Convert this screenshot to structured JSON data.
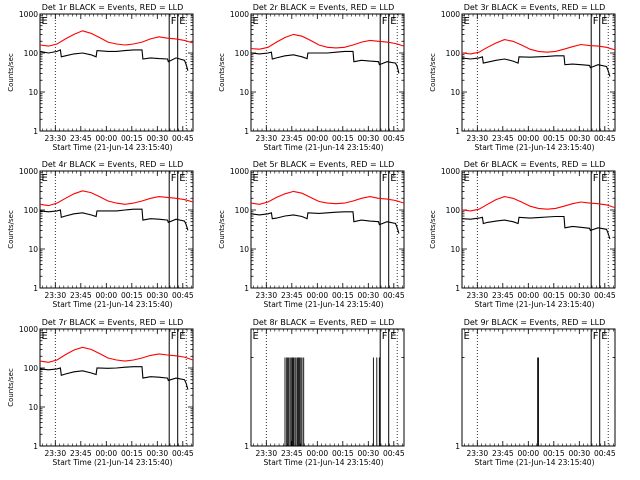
{
  "chart_data": [
    {
      "type": "line",
      "title": "Det 1r  BLACK = Events, RED = LLD",
      "xlabel": "Start Time (21-Jun-14 23:15:40)",
      "ylabel": "Counts/sec",
      "yscale": "log",
      "ylim": [
        1,
        1000
      ],
      "x_ticks": [
        "23:30",
        "23:45",
        "00:00",
        "00:15",
        "00:30",
        "00:45"
      ],
      "y_ticks": [
        "1",
        "10",
        "100",
        "1000"
      ],
      "markers": [
        {
          "label": "E",
          "x_min": 0
        },
        {
          "label": "F",
          "x_min": 76
        },
        {
          "label": "E",
          "x_min": 81
        }
      ],
      "dotted_x_min": [
        9,
        86
      ],
      "series": [
        {
          "name": "LLD",
          "color": "#ff0000",
          "x_min": [
            0,
            5,
            10,
            15,
            20,
            25,
            30,
            35,
            40,
            45,
            50,
            55,
            60,
            65,
            70,
            75,
            80,
            85,
            90
          ],
          "values": [
            160,
            150,
            170,
            230,
            300,
            370,
            320,
            250,
            190,
            170,
            160,
            170,
            190,
            230,
            260,
            240,
            230,
            210,
            180
          ]
        },
        {
          "name": "Events",
          "color": "#000000",
          "x_min": [
            0,
            5,
            10,
            12,
            12.5,
            15,
            20,
            25,
            30,
            33,
            33.5,
            40,
            45,
            50,
            55,
            60,
            60.5,
            65,
            70,
            75,
            75.5,
            80,
            85,
            86,
            87
          ],
          "values": [
            110,
            100,
            110,
            120,
            80,
            85,
            95,
            100,
            90,
            80,
            115,
            110,
            110,
            115,
            120,
            120,
            70,
            75,
            72,
            70,
            60,
            75,
            65,
            50,
            35
          ]
        }
      ]
    },
    {
      "type": "line",
      "title": "Det 2r  BLACK = Events, RED = LLD",
      "xlabel": "Start Time (21-Jun-14 23:15:40)",
      "ylabel": "Counts/sec",
      "yscale": "log",
      "ylim": [
        1,
        1000
      ],
      "x_ticks": [
        "23:30",
        "23:45",
        "00:00",
        "00:15",
        "00:30",
        "00:45"
      ],
      "y_ticks": [
        "1",
        "10",
        "100",
        "1000"
      ],
      "markers": [
        {
          "label": "E",
          "x_min": 0
        },
        {
          "label": "F",
          "x_min": 76
        },
        {
          "label": "E",
          "x_min": 81
        }
      ],
      "dotted_x_min": [
        9,
        86
      ],
      "series": [
        {
          "name": "LLD",
          "color": "#ff0000",
          "x_min": [
            0,
            5,
            10,
            15,
            20,
            25,
            30,
            35,
            40,
            45,
            50,
            55,
            60,
            65,
            70,
            75,
            80,
            85,
            90
          ],
          "values": [
            130,
            125,
            140,
            190,
            250,
            300,
            270,
            210,
            160,
            140,
            135,
            140,
            160,
            190,
            210,
            200,
            190,
            175,
            150
          ]
        },
        {
          "name": "Events",
          "color": "#000000",
          "x_min": [
            0,
            5,
            10,
            12,
            12.5,
            15,
            20,
            25,
            30,
            33,
            33.5,
            40,
            45,
            50,
            55,
            60,
            60.5,
            65,
            70,
            75,
            75.5,
            80,
            85,
            86,
            87
          ],
          "values": [
            100,
            95,
            100,
            105,
            70,
            75,
            85,
            90,
            80,
            72,
            100,
            100,
            100,
            105,
            110,
            110,
            60,
            65,
            62,
            60,
            50,
            60,
            55,
            45,
            30
          ]
        }
      ]
    },
    {
      "type": "line",
      "title": "Det 3r  BLACK = Events, RED = LLD",
      "xlabel": "Start Time (21-Jun-14 23:15:40)",
      "ylabel": "Counts/sec",
      "yscale": "log",
      "ylim": [
        1,
        1000
      ],
      "x_ticks": [
        "23:30",
        "23:45",
        "00:00",
        "00:15",
        "00:30",
        "00:45"
      ],
      "y_ticks": [
        "1",
        "10",
        "100",
        "1000"
      ],
      "markers": [
        {
          "label": "E",
          "x_min": 0
        },
        {
          "label": "F",
          "x_min": 76
        },
        {
          "label": "E",
          "x_min": 81
        }
      ],
      "dotted_x_min": [
        9,
        86
      ],
      "series": [
        {
          "name": "LLD",
          "color": "#ff0000",
          "x_min": [
            0,
            5,
            10,
            15,
            20,
            25,
            30,
            35,
            40,
            45,
            50,
            55,
            60,
            65,
            70,
            75,
            80,
            85,
            90
          ],
          "values": [
            100,
            95,
            105,
            140,
            180,
            220,
            200,
            160,
            125,
            110,
            105,
            110,
            125,
            145,
            165,
            155,
            150,
            140,
            120
          ]
        },
        {
          "name": "Events",
          "color": "#000000",
          "x_min": [
            0,
            5,
            10,
            12,
            12.5,
            15,
            20,
            25,
            30,
            33,
            33.5,
            40,
            45,
            50,
            55,
            60,
            60.5,
            65,
            70,
            75,
            75.5,
            80,
            85,
            86,
            87
          ],
          "values": [
            75,
            70,
            75,
            80,
            55,
            58,
            65,
            70,
            62,
            55,
            80,
            78,
            80,
            82,
            85,
            85,
            50,
            52,
            50,
            48,
            42,
            50,
            45,
            35,
            25
          ]
        }
      ]
    },
    {
      "type": "line",
      "title": "Det 4r  BLACK = Events, RED = LLD",
      "xlabel": "Start Time (21-Jun-14 23:15:40)",
      "ylabel": "Counts/sec",
      "yscale": "log",
      "ylim": [
        1,
        1000
      ],
      "x_ticks": [
        "23:30",
        "23:45",
        "00:00",
        "00:15",
        "00:30",
        "00:45"
      ],
      "y_ticks": [
        "1",
        "10",
        "100",
        "1000"
      ],
      "markers": [
        {
          "label": "E",
          "x_min": 0
        },
        {
          "label": "F",
          "x_min": 76
        },
        {
          "label": "E",
          "x_min": 81
        }
      ],
      "dotted_x_min": [
        9,
        86
      ],
      "series": [
        {
          "name": "LLD",
          "color": "#ff0000",
          "x_min": [
            0,
            5,
            10,
            15,
            20,
            25,
            30,
            35,
            40,
            45,
            50,
            55,
            60,
            65,
            70,
            75,
            80,
            85,
            90
          ],
          "values": [
            140,
            130,
            150,
            200,
            260,
            310,
            280,
            220,
            170,
            150,
            140,
            150,
            170,
            200,
            220,
            210,
            200,
            185,
            160
          ]
        },
        {
          "name": "Events",
          "color": "#000000",
          "x_min": [
            0,
            5,
            10,
            12,
            12.5,
            15,
            20,
            25,
            30,
            33,
            33.5,
            40,
            45,
            50,
            55,
            60,
            60.5,
            65,
            70,
            75,
            75.5,
            80,
            85,
            86,
            87
          ],
          "values": [
            95,
            90,
            95,
            100,
            65,
            70,
            80,
            85,
            75,
            68,
            95,
            95,
            95,
            100,
            105,
            105,
            55,
            60,
            58,
            55,
            48,
            58,
            52,
            42,
            30
          ]
        }
      ]
    },
    {
      "type": "line",
      "title": "Det 5r  BLACK = Events, RED = LLD",
      "xlabel": "Start Time (21-Jun-14 23:15:40)",
      "ylabel": "Counts/sec",
      "yscale": "log",
      "ylim": [
        1,
        1000
      ],
      "x_ticks": [
        "23:30",
        "23:45",
        "00:00",
        "00:15",
        "00:30",
        "00:45"
      ],
      "y_ticks": [
        "1",
        "10",
        "100",
        "1000"
      ],
      "markers": [
        {
          "label": "E",
          "x_min": 0
        },
        {
          "label": "F",
          "x_min": 76
        },
        {
          "label": "E",
          "x_min": 81
        }
      ],
      "dotted_x_min": [
        9,
        86
      ],
      "series": [
        {
          "name": "LLD",
          "color": "#ff0000",
          "x_min": [
            0,
            5,
            10,
            15,
            20,
            25,
            30,
            35,
            40,
            45,
            50,
            55,
            60,
            65,
            70,
            75,
            80,
            85,
            90
          ],
          "values": [
            150,
            140,
            160,
            210,
            260,
            300,
            270,
            210,
            165,
            150,
            145,
            150,
            170,
            200,
            220,
            200,
            190,
            175,
            150
          ]
        },
        {
          "name": "Events",
          "color": "#000000",
          "x_min": [
            0,
            5,
            10,
            12,
            12.5,
            15,
            20,
            25,
            30,
            33,
            33.5,
            40,
            45,
            50,
            55,
            60,
            60.5,
            65,
            70,
            75,
            75.5,
            80,
            85,
            86,
            87
          ],
          "values": [
            80,
            75,
            80,
            85,
            60,
            62,
            70,
            75,
            68,
            60,
            85,
            82,
            85,
            88,
            90,
            90,
            50,
            55,
            52,
            50,
            42,
            50,
            45,
            35,
            25
          ]
        }
      ]
    },
    {
      "type": "line",
      "title": "Det 6r  BLACK = Events, RED = LLD",
      "xlabel": "Start Time (21-Jun-14 23:15:40)",
      "ylabel": "Counts/sec",
      "yscale": "log",
      "ylim": [
        1,
        1000
      ],
      "x_ticks": [
        "23:30",
        "23:45",
        "00:00",
        "00:15",
        "00:30",
        "00:45"
      ],
      "y_ticks": [
        "1",
        "10",
        "100",
        "1000"
      ],
      "markers": [
        {
          "label": "E",
          "x_min": 0
        },
        {
          "label": "F",
          "x_min": 76
        },
        {
          "label": "E",
          "x_min": 81
        }
      ],
      "dotted_x_min": [
        9,
        86
      ],
      "series": [
        {
          "name": "LLD",
          "color": "#ff0000",
          "x_min": [
            0,
            5,
            10,
            15,
            20,
            25,
            30,
            35,
            40,
            45,
            50,
            55,
            60,
            65,
            70,
            75,
            80,
            85,
            90
          ],
          "values": [
            100,
            95,
            105,
            140,
            185,
            220,
            200,
            160,
            125,
            110,
            105,
            110,
            125,
            145,
            160,
            150,
            145,
            135,
            115
          ]
        },
        {
          "name": "Events",
          "color": "#000000",
          "x_min": [
            0,
            5,
            10,
            12,
            12.5,
            15,
            20,
            25,
            30,
            33,
            33.5,
            40,
            45,
            50,
            55,
            60,
            60.5,
            65,
            70,
            75,
            75.5,
            80,
            85,
            86,
            87
          ],
          "values": [
            60,
            58,
            62,
            65,
            45,
            48,
            52,
            55,
            50,
            45,
            65,
            62,
            64,
            66,
            68,
            68,
            35,
            38,
            36,
            34,
            30,
            35,
            32,
            25,
            18
          ]
        }
      ]
    },
    {
      "type": "line",
      "title": "Det 7r  BLACK = Events, RED = LLD",
      "xlabel": "Start Time (21-Jun-14 23:15:40)",
      "ylabel": "Counts/sec",
      "yscale": "log",
      "ylim": [
        1,
        1000
      ],
      "x_ticks": [
        "23:30",
        "23:45",
        "00:00",
        "00:15",
        "00:30",
        "00:45"
      ],
      "y_ticks": [
        "1",
        "10",
        "100",
        "1000"
      ],
      "markers": [
        {
          "label": "E",
          "x_min": 0
        },
        {
          "label": "F",
          "x_min": 76
        },
        {
          "label": "E",
          "x_min": 81
        }
      ],
      "dotted_x_min": [
        9,
        86
      ],
      "series": [
        {
          "name": "LLD",
          "color": "#ff0000",
          "x_min": [
            0,
            5,
            10,
            15,
            20,
            25,
            30,
            35,
            40,
            45,
            50,
            55,
            60,
            65,
            70,
            75,
            80,
            85,
            90
          ],
          "values": [
            150,
            140,
            160,
            220,
            290,
            340,
            300,
            235,
            180,
            160,
            150,
            160,
            180,
            210,
            230,
            215,
            205,
            190,
            160
          ]
        },
        {
          "name": "Events",
          "color": "#000000",
          "x_min": [
            0,
            5,
            10,
            12,
            12.5,
            15,
            20,
            25,
            30,
            33,
            33.5,
            40,
            45,
            50,
            55,
            60,
            60.5,
            65,
            70,
            75,
            75.5,
            80,
            85,
            86,
            87
          ],
          "values": [
            95,
            90,
            95,
            100,
            65,
            70,
            80,
            85,
            75,
            68,
            100,
            98,
            100,
            105,
            108,
            108,
            55,
            60,
            58,
            55,
            48,
            55,
            50,
            40,
            28
          ]
        }
      ]
    },
    {
      "type": "line",
      "title": "Det 8r  BLACK = Events, RED = LLD",
      "xlabel": "Start Time (21-Jun-14 23:15:40)",
      "ylabel": "",
      "yscale": "log",
      "ylim": [
        1,
        2.5
      ],
      "x_ticks": [
        "23:30",
        "23:45",
        "00:00",
        "00:15",
        "00:30",
        "00:45"
      ],
      "y_ticks": [
        "1"
      ],
      "markers": [
        {
          "label": "E",
          "x_min": 0
        },
        {
          "label": "F",
          "x_min": 76
        },
        {
          "label": "E",
          "x_min": 81
        }
      ],
      "dotted_x_min": [
        9,
        86
      ],
      "series": [
        {
          "name": "Events",
          "color": "#000000",
          "kind": "spikes",
          "x_min": [
            20,
            21,
            21.6,
            22.2,
            23,
            23.7,
            24.4,
            25,
            25.8,
            26.5,
            27.3,
            28,
            28.6,
            29.3,
            30,
            31,
            72,
            74,
            75.5
          ],
          "values": [
            2,
            2,
            2,
            2,
            2,
            2,
            2,
            2,
            2,
            2,
            2,
            2,
            2,
            2,
            2,
            2,
            2,
            2,
            2
          ]
        }
      ]
    },
    {
      "type": "line",
      "title": "Det 9r  BLACK = Events, RED = LLD",
      "xlabel": "Start Time (21-Jun-14 23:15:40)",
      "ylabel": "",
      "yscale": "log",
      "ylim": [
        1,
        2.5
      ],
      "x_ticks": [
        "23:30",
        "23:45",
        "00:00",
        "00:15",
        "00:30",
        "00:45"
      ],
      "y_ticks": [
        "1"
      ],
      "markers": [
        {
          "label": "E",
          "x_min": 0
        },
        {
          "label": "F",
          "x_min": 76
        },
        {
          "label": "E",
          "x_min": 81
        }
      ],
      "dotted_x_min": [
        9,
        86
      ],
      "series": [
        {
          "name": "Events",
          "color": "#000000",
          "kind": "spikes",
          "x_min": [
            44.5,
            45
          ],
          "values": [
            2,
            2
          ]
        }
      ]
    }
  ]
}
